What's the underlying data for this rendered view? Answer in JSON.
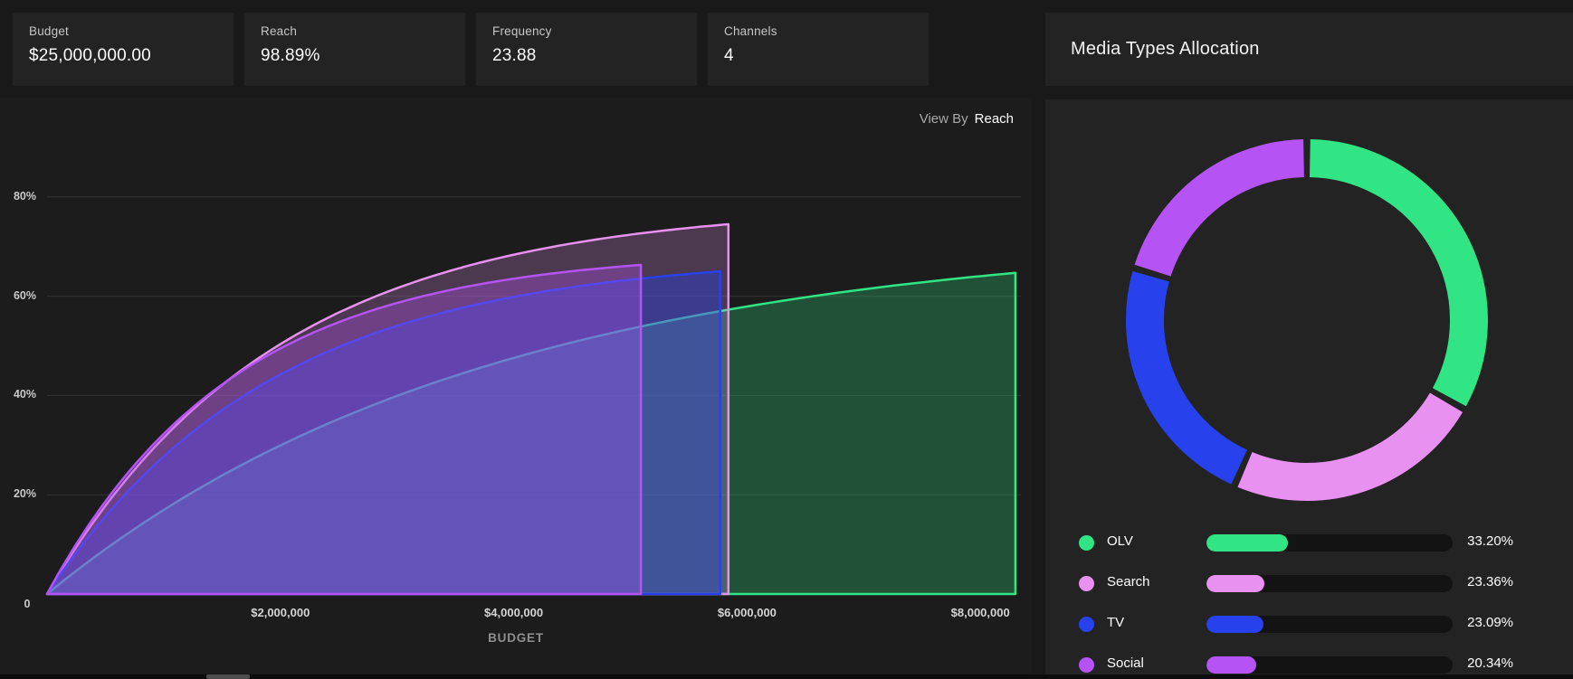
{
  "stat_cards": [
    {
      "label": "Budget",
      "value": "$25,000,000.00"
    },
    {
      "label": "Reach",
      "value": "98.89%"
    },
    {
      "label": "Frequency",
      "value": "23.88"
    },
    {
      "label": "Channels",
      "value": "4"
    }
  ],
  "reach_curve_panel": {
    "view_by_label": "View By",
    "view_by_value": "Reach"
  },
  "allocation_panel": {
    "title": "Media Types Allocation"
  },
  "chart_data": [
    {
      "type": "area",
      "title": "",
      "xlabel": "BUDGET",
      "ylabel": "",
      "x_tick_labels": [
        "$2,000,000",
        "$4,000,000",
        "$6,000,000",
        "$8,000,000"
      ],
      "x_tick_values": [
        2000000,
        4000000,
        6000000,
        8000000
      ],
      "y_tick_labels": [
        "80%",
        "60%",
        "40%",
        "20%"
      ],
      "y_tick_values": [
        80,
        60,
        40,
        20
      ],
      "origin_label": "0",
      "x_range": [
        0,
        8350000
      ],
      "y_range": [
        0,
        83
      ],
      "grid": "horizontal",
      "legend_position": "none",
      "series": [
        {
          "name": "OLV",
          "color": "#31e584",
          "fill_opacity": 0.27,
          "budget": 8300000,
          "reach_at_budget": 64.7,
          "curvature": 2.2
        },
        {
          "name": "Search",
          "color": "#e891f1",
          "fill_opacity": 0.24,
          "budget": 5840000,
          "reach_at_budget": 74.5,
          "curvature": 3.0
        },
        {
          "name": "TV",
          "color": "#2742ec",
          "fill_opacity": 0.4,
          "budget": 5770000,
          "reach_at_budget": 65.0,
          "curvature": 3.0
        },
        {
          "name": "Social",
          "color": "#b553f5",
          "fill_opacity": 0.32,
          "budget": 5090000,
          "reach_at_budget": 66.3,
          "curvature": 3.2
        }
      ],
      "note": "diminishing-returns reach curves; each channel area ends with a vertical edge at its allocated budget"
    },
    {
      "type": "donut",
      "title": "Media Types Allocation",
      "labels": [
        "OLV",
        "Search",
        "TV",
        "Social"
      ],
      "values": [
        33.2,
        23.36,
        23.09,
        20.34
      ],
      "value_labels": [
        "33.20%",
        "23.36%",
        "23.09%",
        "20.34%"
      ],
      "colors": [
        "#31e584",
        "#e891f1",
        "#2742ec",
        "#b553f5"
      ],
      "start_angle_deg": 0,
      "direction": "clockwise",
      "legend_position": "bottom"
    }
  ],
  "grid_color": "#323232",
  "legend_track_color": "#131313"
}
